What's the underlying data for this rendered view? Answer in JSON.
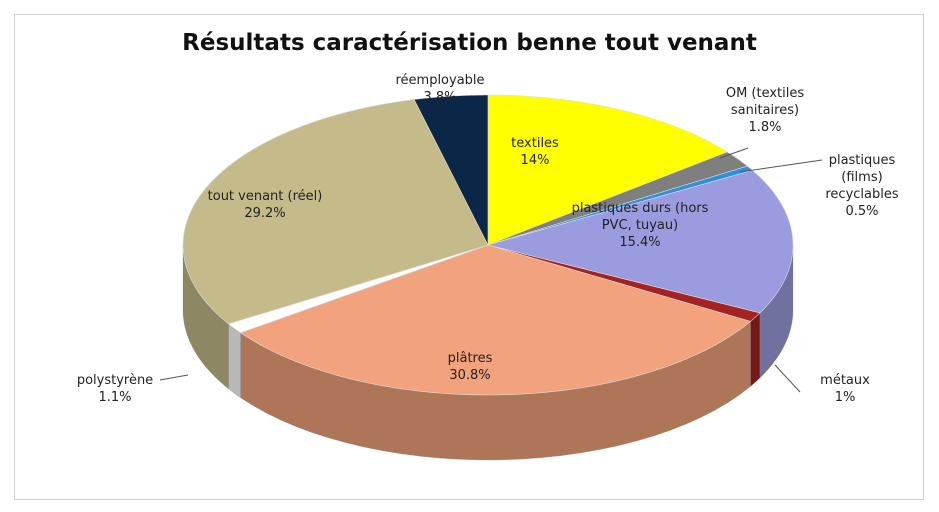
{
  "chart_data": {
    "type": "pie",
    "title": "Résultats caractérisation benne tout venant",
    "categories": [
      "textiles",
      "OM (textiles sanitaires)",
      "plastiques (films) recyclables",
      "plastiques durs (hors PVC, tuyau)",
      "métaux",
      "plâtres",
      "polystyrène",
      "tout venant (réel)",
      "réemployable"
    ],
    "values": [
      14,
      1.8,
      0.5,
      15.4,
      1,
      30.8,
      1.1,
      29.2,
      3.8
    ],
    "value_labels": [
      "14%",
      "1.8%",
      "0.5%",
      "15.4%",
      "1%",
      "30.8%",
      "1.1%",
      "29.2%",
      "3.8%"
    ],
    "colors": [
      "#ffff00",
      "#7f7f7f",
      "#2e8fe0",
      "#9b9be0",
      "#a52222",
      "#f2a27c",
      "#ffffff",
      "#c5bb8a",
      "#0b2748"
    ]
  }
}
